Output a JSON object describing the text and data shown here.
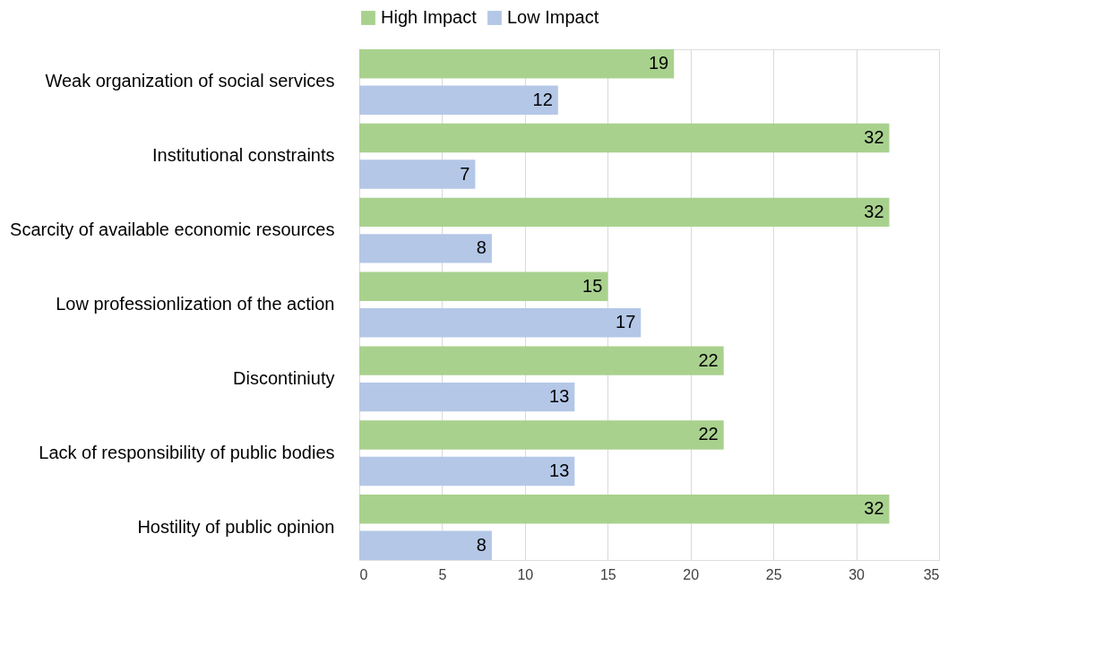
{
  "chart_data": {
    "type": "bar",
    "orientation": "horizontal",
    "categories": [
      "Weak organization of social services",
      "Institutional constraints",
      "Scarcity of available economic resources",
      "Low professionlization of the action",
      "Discontiniuty",
      "Lack of responsibility of public bodies",
      "Hostility of public opinion"
    ],
    "series": [
      {
        "name": "High Impact",
        "color": "#a9d18e",
        "values": [
          19,
          32,
          32,
          15,
          22,
          22,
          32
        ]
      },
      {
        "name": "Low Impact",
        "color": "#b4c7e7",
        "values": [
          12,
          7,
          8,
          17,
          13,
          13,
          8
        ]
      }
    ],
    "xlim": [
      0,
      35
    ],
    "xticks": [
      0,
      5,
      10,
      15,
      20,
      25,
      30,
      35
    ],
    "grid": "x",
    "legend": "top",
    "data_labels": true
  }
}
